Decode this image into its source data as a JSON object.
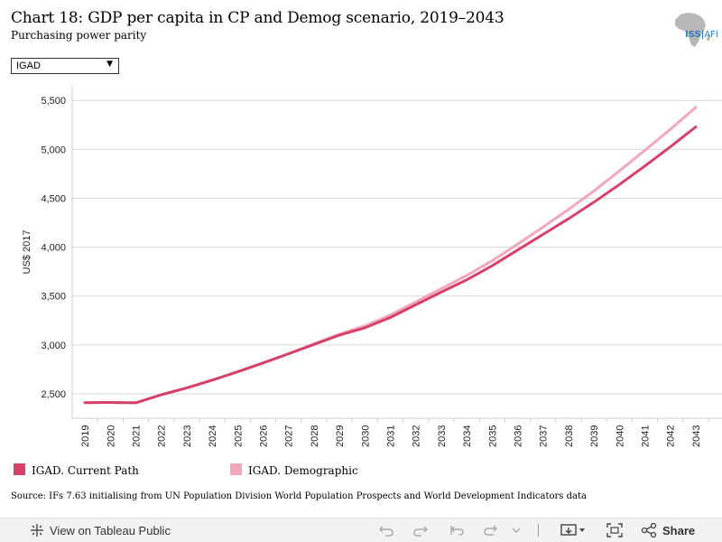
{
  "header": {
    "title": "Chart 18: GDP per capita in CP and Demog scenario, 2019–2043",
    "subtitle": "Purchasing power parity",
    "logo_text": "ISS",
    "logo_text_suffix": "AFI"
  },
  "filter": {
    "selected": "IGAD"
  },
  "source": "Source: IFs 7.63 initialising from UN Population Division World Population Prospects and World Development Indicators data",
  "toolbar": {
    "view_label": "View on Tableau Public",
    "share_label": "Share"
  },
  "colors": {
    "current_path": "#d6416a",
    "demographic": "#f2a7bc",
    "grid": "#d9d9d9"
  },
  "chart_data": {
    "type": "line",
    "title": "Chart 18: GDP per capita in CP and Demog scenario, 2019–2043",
    "subtitle": "Purchasing power parity",
    "ylabel": "US$ 2017",
    "xlabel": "",
    "ylim": [
      2250,
      5650
    ],
    "yticks": [
      2500,
      3000,
      3500,
      4000,
      4500,
      5000,
      5500
    ],
    "ytick_labels": [
      "2,500",
      "3,000",
      "3,500",
      "4,000",
      "4,500",
      "5,000",
      "5,500"
    ],
    "grid": true,
    "legend_position": "bottom",
    "x": [
      "2019",
      "2020",
      "2021",
      "2022",
      "2023",
      "2024",
      "2025",
      "2026",
      "2027",
      "2028",
      "2029",
      "2030",
      "2031",
      "2032",
      "2033",
      "2034",
      "2035",
      "2036",
      "2037",
      "2038",
      "2039",
      "2040",
      "2041",
      "2042",
      "2043"
    ],
    "series": [
      {
        "name": "IGAD. Current Path",
        "color": "#d6416a",
        "values": [
          2410,
          2412,
          2408,
          2490,
          2560,
          2640,
          2725,
          2815,
          2910,
          3005,
          3100,
          3175,
          3280,
          3410,
          3540,
          3665,
          3810,
          3970,
          4130,
          4290,
          4460,
          4640,
          4830,
          5025,
          5230
        ]
      },
      {
        "name": "IGAD. Demographic",
        "color": "#f2a7bc",
        "values": [
          2410,
          2412,
          2408,
          2490,
          2560,
          2640,
          2725,
          2815,
          2910,
          3010,
          3110,
          3195,
          3305,
          3440,
          3575,
          3710,
          3860,
          4030,
          4205,
          4385,
          4575,
          4780,
          4990,
          5205,
          5430
        ]
      }
    ]
  }
}
